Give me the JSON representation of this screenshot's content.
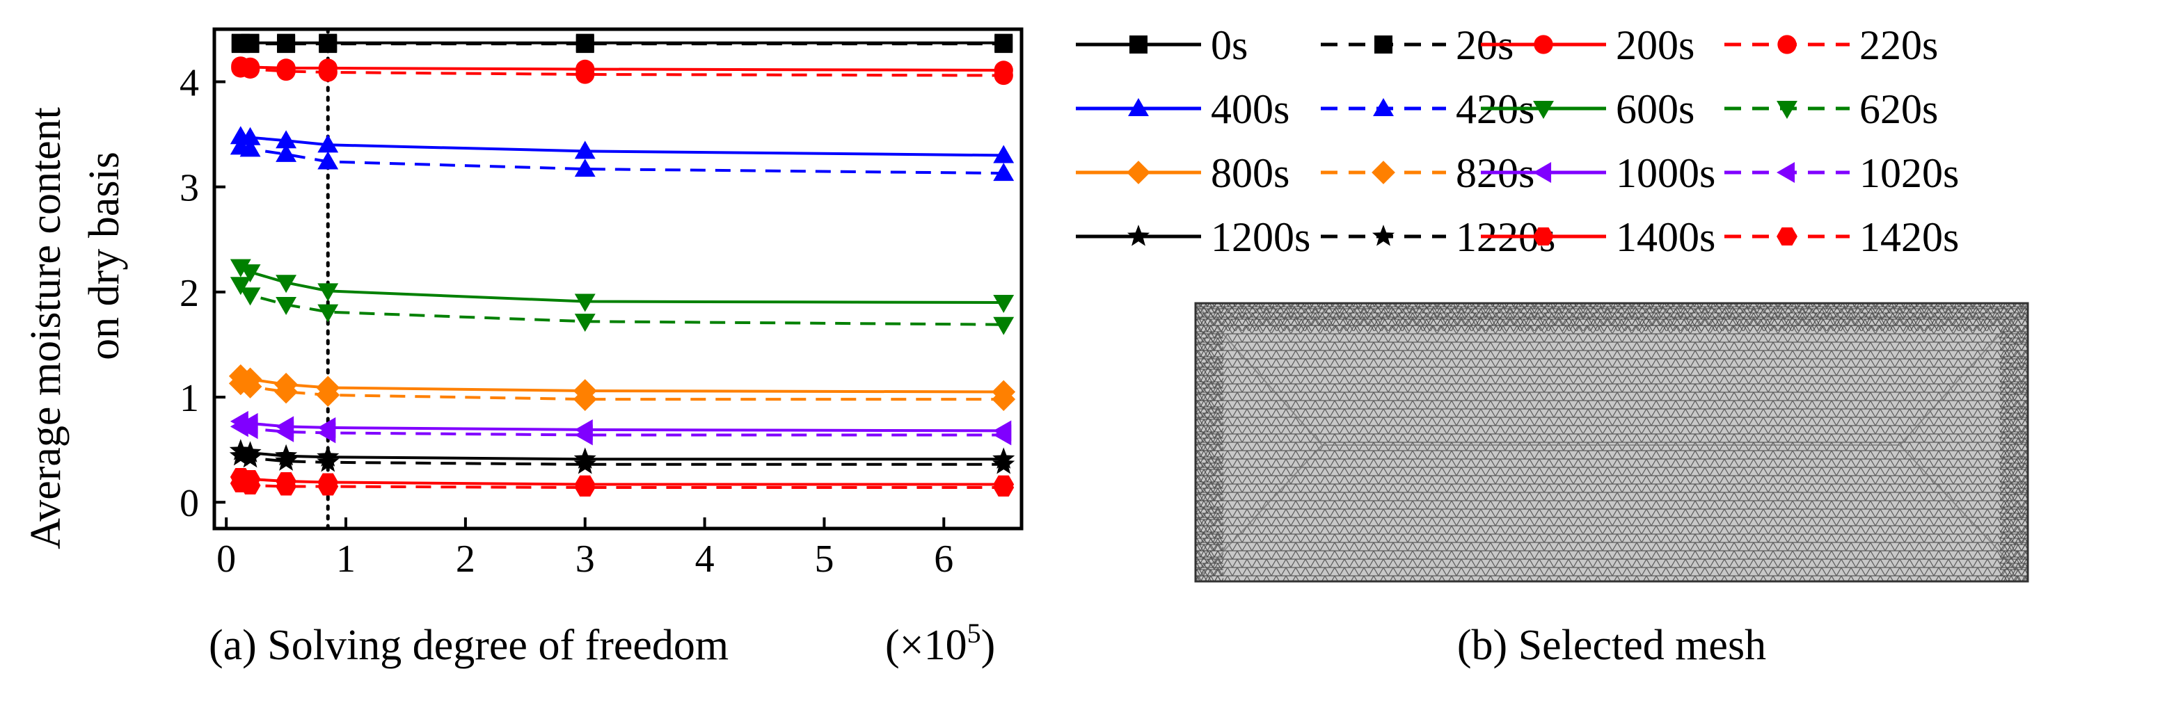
{
  "chart_data": [
    {
      "type": "line",
      "caption_prefix": "(a)",
      "xlabel": "Solving degree of freedom",
      "x_multiplier_base": "(×10",
      "x_multiplier_exp": "5",
      "x_multiplier_close": ")",
      "ylabel_line1": "Average moisture content",
      "ylabel_line2": "on dry basis",
      "xlim": [
        -0.1,
        6.65
      ],
      "ylim": [
        -0.25,
        4.5
      ],
      "xticks": [
        0,
        1,
        2,
        3,
        4,
        5,
        6
      ],
      "xtick_labels": [
        "0",
        "1",
        "2",
        "3",
        "4",
        "5",
        "6"
      ],
      "yticks": [
        0,
        1,
        2,
        3,
        4
      ],
      "ytick_labels": [
        "0",
        "1",
        "2",
        "3",
        "4"
      ],
      "reference_line_x": 0.85,
      "x": [
        0.12,
        0.2,
        0.5,
        0.85,
        3.0,
        6.5
      ],
      "series": [
        {
          "name": "0s",
          "color": "#000000",
          "dash": false,
          "marker": "square",
          "values": [
            4.37,
            4.37,
            4.37,
            4.37,
            4.37,
            4.37
          ]
        },
        {
          "name": "20s",
          "color": "#000000",
          "dash": true,
          "marker": "square",
          "values": [
            4.36,
            4.36,
            4.36,
            4.36,
            4.36,
            4.36
          ]
        },
        {
          "name": "200s",
          "color": "#ff0000",
          "dash": false,
          "marker": "circle",
          "values": [
            4.15,
            4.14,
            4.13,
            4.13,
            4.12,
            4.11
          ]
        },
        {
          "name": "220s",
          "color": "#ff0000",
          "dash": true,
          "marker": "circle",
          "values": [
            4.13,
            4.12,
            4.1,
            4.09,
            4.07,
            4.06
          ]
        },
        {
          "name": "400s",
          "color": "#0000ff",
          "dash": false,
          "marker": "triangle-up",
          "values": [
            3.48,
            3.47,
            3.44,
            3.4,
            3.34,
            3.3
          ]
        },
        {
          "name": "420s",
          "color": "#0000ff",
          "dash": true,
          "marker": "triangle-up",
          "values": [
            3.38,
            3.36,
            3.31,
            3.24,
            3.17,
            3.13
          ]
        },
        {
          "name": "600s",
          "color": "#008000",
          "dash": false,
          "marker": "triangle-down",
          "values": [
            2.24,
            2.19,
            2.09,
            2.01,
            1.91,
            1.9
          ]
        },
        {
          "name": "620s",
          "color": "#008000",
          "dash": true,
          "marker": "triangle-down",
          "values": [
            2.07,
            1.97,
            1.88,
            1.81,
            1.72,
            1.69
          ]
        },
        {
          "name": "800s",
          "color": "#ff8000",
          "dash": false,
          "marker": "diamond",
          "values": [
            1.2,
            1.17,
            1.12,
            1.09,
            1.06,
            1.05
          ]
        },
        {
          "name": "820s",
          "color": "#ff8000",
          "dash": true,
          "marker": "diamond",
          "values": [
            1.13,
            1.1,
            1.05,
            1.02,
            0.98,
            0.98
          ]
        },
        {
          "name": "1000s",
          "color": "#8000ff",
          "dash": false,
          "marker": "triangle-left",
          "values": [
            0.77,
            0.75,
            0.72,
            0.71,
            0.69,
            0.68
          ]
        },
        {
          "name": "1020s",
          "color": "#8000ff",
          "dash": true,
          "marker": "triangle-left",
          "values": [
            0.72,
            0.7,
            0.67,
            0.66,
            0.64,
            0.64
          ]
        },
        {
          "name": "1200s",
          "color": "#000000",
          "dash": false,
          "marker": "star",
          "values": [
            0.49,
            0.47,
            0.44,
            0.43,
            0.41,
            0.41
          ]
        },
        {
          "name": "1220s",
          "color": "#000000",
          "dash": true,
          "marker": "star",
          "values": [
            0.44,
            0.42,
            0.39,
            0.38,
            0.36,
            0.36
          ]
        },
        {
          "name": "1400s",
          "color": "#ff0000",
          "dash": false,
          "marker": "hexagon",
          "values": [
            0.24,
            0.22,
            0.2,
            0.19,
            0.17,
            0.17
          ]
        },
        {
          "name": "1420s",
          "color": "#ff0000",
          "dash": true,
          "marker": "hexagon",
          "values": [
            0.18,
            0.16,
            0.15,
            0.15,
            0.14,
            0.14
          ]
        }
      ]
    }
  ],
  "mesh": {
    "caption": "(b) Selected mesh",
    "fill_color": "#c8c8c8",
    "line_color": "#5a5a5a"
  }
}
